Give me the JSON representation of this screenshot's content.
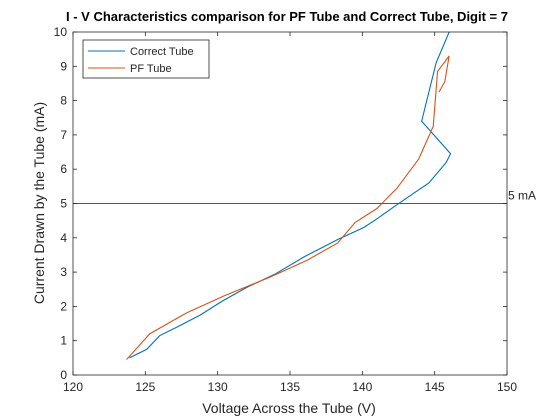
{
  "chart_data": {
    "type": "line",
    "title": "I - V Characteristics comparison for PF Tube and Correct Tube, Digit = 7",
    "xlabel": "Voltage Across the Tube (V)",
    "ylabel": "Current Drawn by the Tube (mA)",
    "xlim": [
      120,
      150
    ],
    "ylim": [
      0,
      10
    ],
    "xticks": [
      120,
      125,
      130,
      135,
      140,
      145,
      150
    ],
    "yticks": [
      0,
      1,
      2,
      3,
      4,
      5,
      6,
      7,
      8,
      9,
      10
    ],
    "grid": false,
    "legend_position": "top-left",
    "series": [
      {
        "name": "Correct Tube",
        "color": "#0072BD",
        "x": [
          123.9,
          125.1,
          126.0,
          127.2,
          128.8,
          130.3,
          132.0,
          134.0,
          136.0,
          138.3,
          140.1,
          141.0,
          142.0,
          143.2,
          144.6,
          145.8,
          146.1,
          144.1,
          145.1,
          146.0
        ],
        "y": [
          0.5,
          0.75,
          1.15,
          1.4,
          1.75,
          2.15,
          2.55,
          2.95,
          3.45,
          3.95,
          4.3,
          4.55,
          4.85,
          5.2,
          5.6,
          6.2,
          6.45,
          7.4,
          9.1,
          10.0
        ]
      },
      {
        "name": "PF Tube",
        "color": "#D95319",
        "x": [
          123.7,
          125.3,
          127.8,
          130.4,
          133.6,
          136.2,
          138.3,
          139.5,
          141.0,
          142.4,
          143.9,
          144.9,
          145.2,
          146.0,
          145.7,
          145.3
        ],
        "y": [
          0.45,
          1.2,
          1.8,
          2.3,
          2.85,
          3.35,
          3.85,
          4.45,
          4.85,
          5.45,
          6.3,
          7.25,
          8.85,
          9.3,
          8.55,
          8.25
        ]
      }
    ],
    "reference_line": {
      "y": 5,
      "label": "5 mA",
      "color": "#0072BD"
    }
  }
}
